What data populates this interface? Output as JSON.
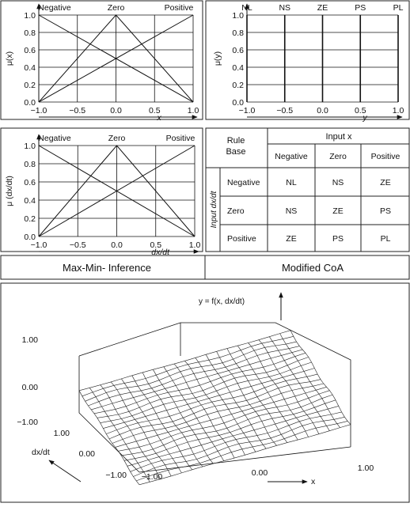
{
  "panels": {
    "input_x": {
      "y_axis_label": "μ(x)",
      "x_axis_label": "x",
      "set_labels": [
        "Negative",
        "Zero",
        "Positive"
      ],
      "x_ticks": [
        "−1.0",
        "−0.5",
        "0.0",
        "0.5",
        "1.0"
      ],
      "y_ticks": [
        "0.0",
        "0.2",
        "0.4",
        "0.6",
        "0.8",
        "1.0"
      ]
    },
    "output_y": {
      "y_axis_label": "μ(y)",
      "x_axis_label": "y",
      "set_labels": [
        "NL",
        "NS",
        "ZE",
        "PS",
        "PL"
      ],
      "x_ticks": [
        "−1.0",
        "−0.5",
        "0.0",
        "0.5",
        "1.0"
      ],
      "y_ticks": [
        "0.0",
        "0.2",
        "0.4",
        "0.6",
        "0.8",
        "1.0"
      ]
    },
    "input_dxdt": {
      "y_axis_label": "μ (dx/dt)",
      "x_axis_label": "dx/dt",
      "set_labels": [
        "Negative",
        "Zero",
        "Positive"
      ],
      "x_ticks": [
        "−1.0",
        "−0.5",
        "0.0",
        "0.5",
        "1.0"
      ],
      "y_ticks": [
        "0.0",
        "0.2",
        "0.4",
        "0.6",
        "0.8",
        "1.0"
      ]
    }
  },
  "rule_base": {
    "corner_label_1": "Rule",
    "corner_label_2": "Base",
    "col_header": "Input x",
    "row_header": "Input dx/dt",
    "columns": [
      "Negative",
      "Zero",
      "Positive"
    ],
    "rows": [
      "Negative",
      "Zero",
      "Positive"
    ],
    "cells": [
      [
        "NL",
        "NS",
        "ZE"
      ],
      [
        "NS",
        "ZE",
        "PS"
      ],
      [
        "ZE",
        "PS",
        "PL"
      ]
    ]
  },
  "labels": {
    "inference": "Max-Min- Inference",
    "defuzz": "Modified CoA"
  },
  "surface": {
    "function_label": "y = f(x, dx/dt)",
    "x_label": "x",
    "dxdt_label": "dx/dt",
    "z_ticks": [
      "1.00",
      "0.00",
      "−1.00"
    ],
    "dxdt_ticks": [
      "1.00",
      "0.00",
      "−1.00"
    ],
    "x_ticks": [
      "−1.00",
      "0.00",
      "1.00"
    ]
  }
}
